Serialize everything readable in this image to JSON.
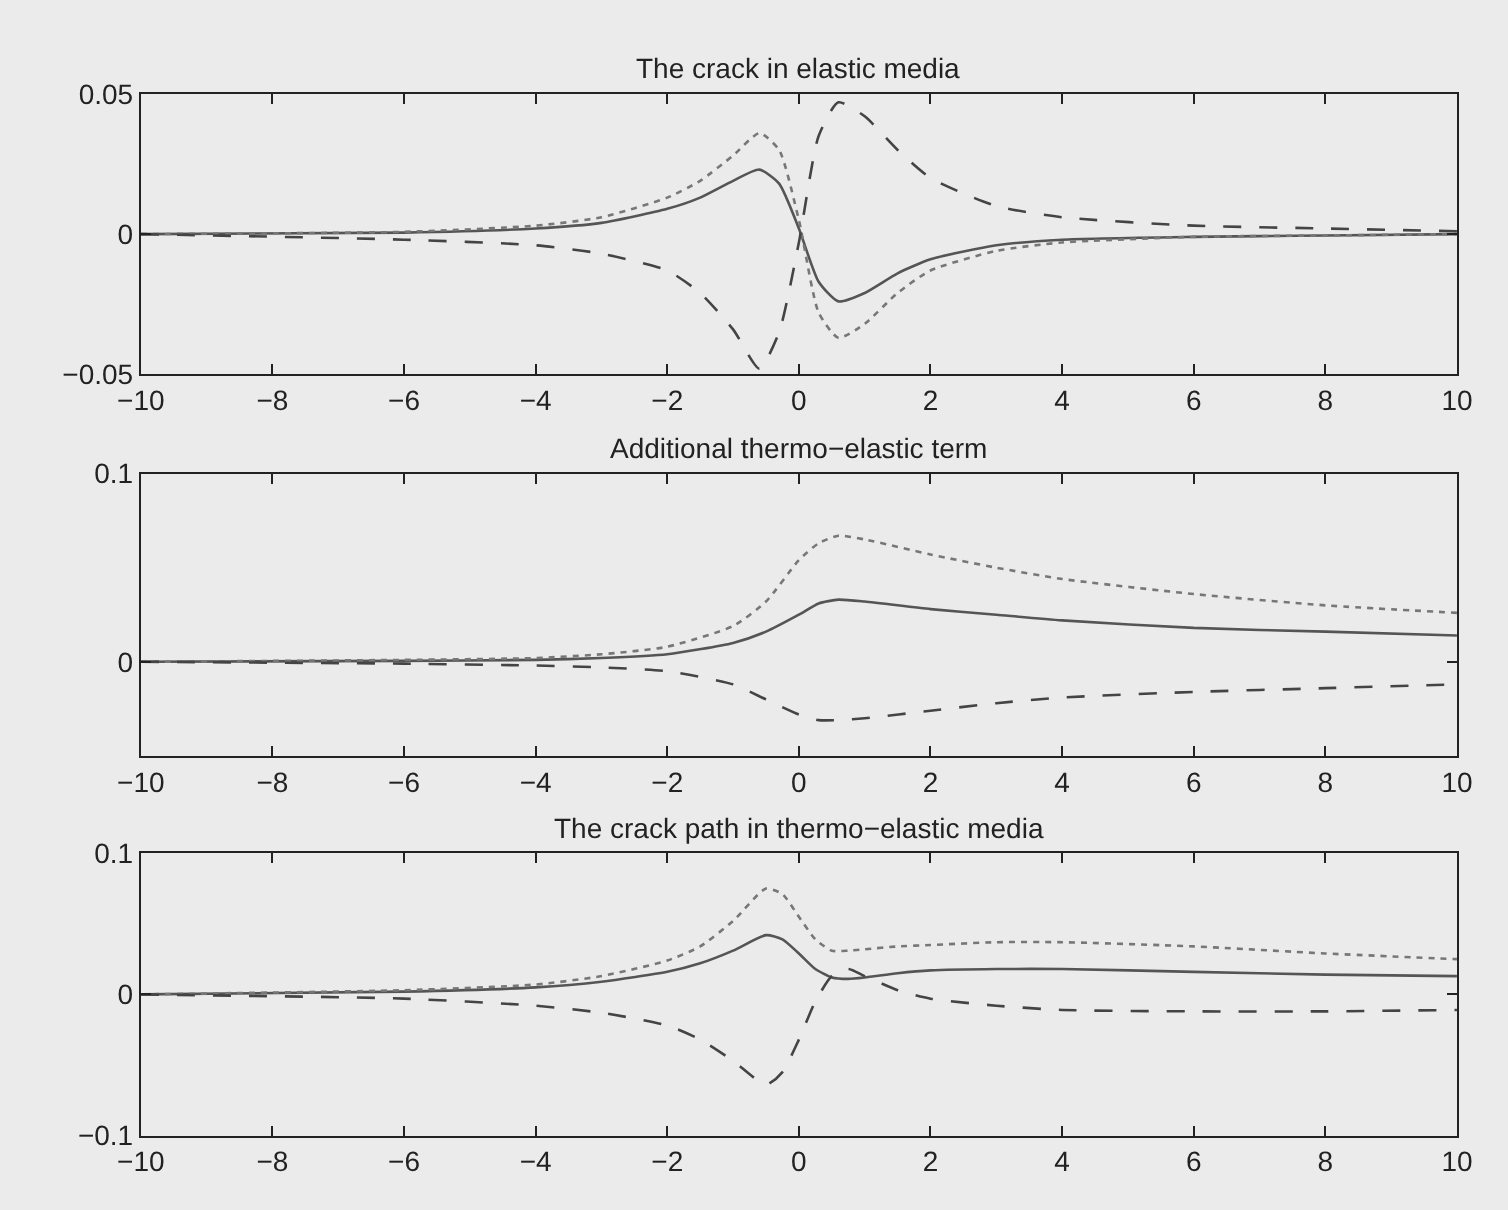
{
  "chart_data": [
    {
      "type": "line",
      "title": "The crack in elastic media",
      "x": [
        -10,
        -6,
        -4,
        -3,
        -2,
        -1.5,
        -1,
        -0.6,
        -0.3,
        0,
        0.3,
        0.6,
        1,
        1.5,
        2,
        3,
        4,
        6,
        8,
        10
      ],
      "series": [
        {
          "color": "#555555",
          "line_style": "solid",
          "values": [
            0,
            0.0005,
            0.002,
            0.004,
            0.009,
            0.013,
            0.019,
            0.023,
            0.018,
            0.002,
            -0.017,
            -0.024,
            -0.021,
            -0.014,
            -0.009,
            -0.004,
            -0.002,
            -0.001,
            -0.0005,
            0
          ]
        },
        {
          "color": "#777777",
          "line_style": "dotted",
          "values": [
            0,
            0.0008,
            0.003,
            0.006,
            0.013,
            0.019,
            0.028,
            0.036,
            0.03,
            0.005,
            -0.028,
            -0.037,
            -0.032,
            -0.021,
            -0.013,
            -0.006,
            -0.003,
            -0.001,
            -0.0005,
            0
          ]
        },
        {
          "color": "#444444",
          "line_style": "dashed",
          "values": [
            0,
            -0.002,
            -0.004,
            -0.007,
            -0.013,
            -0.021,
            -0.034,
            -0.048,
            -0.035,
            -0.003,
            0.035,
            0.047,
            0.042,
            0.03,
            0.02,
            0.01,
            0.006,
            0.003,
            0.002,
            0.001
          ]
        }
      ],
      "xlim": [
        -10,
        10
      ],
      "xticks": [
        -10,
        -8,
        -6,
        -4,
        -2,
        0,
        2,
        4,
        6,
        8,
        10
      ],
      "ylim": [
        -0.05,
        0.05
      ],
      "yticks": [
        -0.05,
        0,
        0.05
      ]
    },
    {
      "type": "line",
      "title": "Additional thermo−elastic term",
      "x": [
        -10,
        -6,
        -4,
        -3,
        -2,
        -1,
        -0.5,
        0,
        0.3,
        0.6,
        1,
        2,
        3,
        4,
        6,
        8,
        10
      ],
      "series": [
        {
          "color": "#555555",
          "line_style": "solid",
          "values": [
            0,
            0.0005,
            0.001,
            0.002,
            0.004,
            0.01,
            0.016,
            0.025,
            0.031,
            0.033,
            0.032,
            0.028,
            0.025,
            0.022,
            0.018,
            0.016,
            0.014
          ]
        },
        {
          "color": "#777777",
          "line_style": "dotted",
          "values": [
            0,
            0.001,
            0.002,
            0.004,
            0.008,
            0.019,
            0.032,
            0.054,
            0.063,
            0.067,
            0.065,
            0.057,
            0.05,
            0.044,
            0.036,
            0.03,
            0.026
          ]
        },
        {
          "color": "#444444",
          "line_style": "dashed",
          "values": [
            0,
            -0.001,
            -0.002,
            -0.003,
            -0.005,
            -0.012,
            -0.02,
            -0.028,
            -0.031,
            -0.031,
            -0.03,
            -0.026,
            -0.022,
            -0.019,
            -0.016,
            -0.014,
            -0.012
          ]
        }
      ],
      "xlim": [
        -10,
        10
      ],
      "xticks": [
        -10,
        -8,
        -6,
        -4,
        -2,
        0,
        2,
        4,
        6,
        8,
        10
      ],
      "ylim": [
        -0.05,
        0.1
      ],
      "yticks": [
        0,
        0.1
      ]
    },
    {
      "type": "line",
      "title": "The crack path in thermo−elastic media",
      "x": [
        -10,
        -6,
        -4,
        -3,
        -2,
        -1.5,
        -1,
        -0.5,
        -0.25,
        0,
        0.25,
        0.5,
        0.75,
        1,
        1.5,
        2,
        3,
        4,
        6,
        8,
        10
      ],
      "series": [
        {
          "color": "#555555",
          "line_style": "solid",
          "values": [
            0,
            0.002,
            0.005,
            0.009,
            0.016,
            0.022,
            0.031,
            0.042,
            0.039,
            0.029,
            0.018,
            0.012,
            0.011,
            0.012,
            0.015,
            0.017,
            0.018,
            0.018,
            0.016,
            0.014,
            0.013
          ]
        },
        {
          "color": "#777777",
          "line_style": "dotted",
          "values": [
            0,
            0.003,
            0.007,
            0.013,
            0.024,
            0.034,
            0.052,
            0.075,
            0.071,
            0.055,
            0.039,
            0.031,
            0.031,
            0.032,
            0.034,
            0.035,
            0.037,
            0.037,
            0.034,
            0.029,
            0.025
          ]
        },
        {
          "color": "#444444",
          "line_style": "dashed",
          "values": [
            0,
            -0.003,
            -0.008,
            -0.013,
            -0.022,
            -0.032,
            -0.047,
            -0.064,
            -0.055,
            -0.032,
            -0.005,
            0.013,
            0.018,
            0.013,
            0.003,
            -0.003,
            -0.008,
            -0.011,
            -0.012,
            -0.012,
            -0.011
          ]
        }
      ],
      "xlim": [
        -10,
        10
      ],
      "xticks": [
        -10,
        -8,
        -6,
        -4,
        -2,
        0,
        2,
        4,
        6,
        8,
        10
      ],
      "ylim": [
        -0.1,
        0.1
      ],
      "yticks": [
        -0.1,
        0,
        0.1
      ]
    }
  ]
}
